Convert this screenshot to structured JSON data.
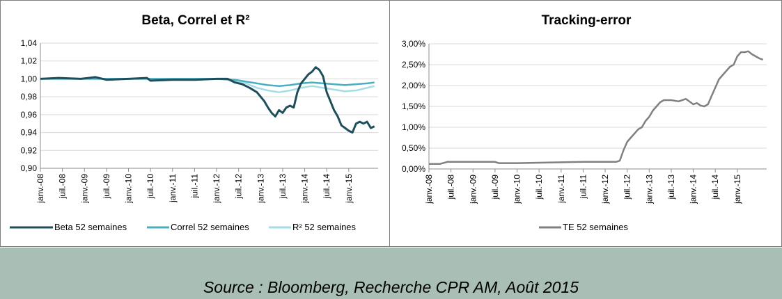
{
  "source": "Source : Bloomberg, Recherche CPR AM, Août 2015",
  "colors": {
    "beta": "#1f4e5b",
    "correl": "#4aaec2",
    "r2": "#a6dbe8",
    "te": "#808080",
    "axis": "#8c8c8c",
    "grid": "#d9d9d9"
  },
  "x_tick_labels": [
    "janv.-08",
    "juil.-08",
    "janv.-09",
    "juil.-09",
    "janv.-10",
    "juil.-10",
    "janv.-11",
    "juil.-11",
    "janv.-12",
    "juil.-12",
    "janv.-13",
    "juil.-13",
    "janv.-14",
    "juil.-14",
    "janv.-15"
  ],
  "chart_data": [
    {
      "type": "line",
      "title": "Beta, Correl et R²",
      "x_ticks": [
        "janv.-08",
        "juil.-08",
        "janv.-09",
        "juil.-09",
        "janv.-10",
        "juil.-10",
        "janv.-11",
        "juil.-11",
        "janv.-12",
        "juil.-12",
        "janv.-13",
        "juil.-13",
        "janv.-14",
        "juil.-14",
        "janv.-15"
      ],
      "y_tick_labels": [
        "0,90",
        "0,92",
        "0,94",
        "0,96",
        "0,98",
        "1,00",
        "1,02",
        "1,04"
      ],
      "ylim": [
        0.9,
        1.04
      ],
      "grid": "horizontal",
      "legend_position": "bottom",
      "series": [
        {
          "name": "Beta 52 semaines",
          "color": "#1f4e5b",
          "points": [
            [
              "2008-01",
              1.0
            ],
            [
              "2008-06",
              1.001
            ],
            [
              "2008-12",
              1.0
            ],
            [
              "2009-04",
              1.002
            ],
            [
              "2009-07",
              0.999
            ],
            [
              "2010-01",
              1.0
            ],
            [
              "2010-06",
              1.001
            ],
            [
              "2010-07",
              0.998
            ],
            [
              "2011-01",
              0.999
            ],
            [
              "2011-07",
              0.999
            ],
            [
              "2012-01",
              1.0
            ],
            [
              "2012-04",
              1.0
            ],
            [
              "2012-06",
              0.996
            ],
            [
              "2012-08",
              0.994
            ],
            [
              "2012-10",
              0.99
            ],
            [
              "2012-12",
              0.985
            ],
            [
              "2013-02",
              0.975
            ],
            [
              "2013-03",
              0.968
            ],
            [
              "2013-04",
              0.962
            ],
            [
              "2013-05",
              0.958
            ],
            [
              "2013-06",
              0.965
            ],
            [
              "2013-07",
              0.962
            ],
            [
              "2013-08",
              0.968
            ],
            [
              "2013-09",
              0.97
            ],
            [
              "2013-10",
              0.968
            ],
            [
              "2013-11",
              0.985
            ],
            [
              "2013-12",
              0.995
            ],
            [
              "2014-01",
              1.0
            ],
            [
              "2014-02",
              1.005
            ],
            [
              "2014-03",
              1.008
            ],
            [
              "2014-04",
              1.013
            ],
            [
              "2014-05",
              1.01
            ],
            [
              "2014-06",
              1.003
            ],
            [
              "2014-07",
              0.985
            ],
            [
              "2014-08",
              0.975
            ],
            [
              "2014-09",
              0.965
            ],
            [
              "2014-10",
              0.958
            ],
            [
              "2014-11",
              0.948
            ],
            [
              "2014-12",
              0.945
            ],
            [
              "2015-01",
              0.942
            ],
            [
              "2015-02",
              0.94
            ],
            [
              "2015-03",
              0.95
            ],
            [
              "2015-04",
              0.952
            ],
            [
              "2015-05",
              0.95
            ],
            [
              "2015-06",
              0.952
            ],
            [
              "2015-07",
              0.945
            ],
            [
              "2015-08",
              0.947
            ]
          ]
        },
        {
          "name": "Correl 52 semaines",
          "color": "#4aaec2",
          "points": [
            [
              "2008-01",
              1.0
            ],
            [
              "2009-01",
              1.0
            ],
            [
              "2010-01",
              1.0
            ],
            [
              "2011-01",
              1.0
            ],
            [
              "2012-01",
              1.0
            ],
            [
              "2012-06",
              0.999
            ],
            [
              "2012-09",
              0.997
            ],
            [
              "2012-12",
              0.995
            ],
            [
              "2013-03",
              0.993
            ],
            [
              "2013-06",
              0.992
            ],
            [
              "2013-09",
              0.993
            ],
            [
              "2013-12",
              0.995
            ],
            [
              "2014-03",
              0.996
            ],
            [
              "2014-06",
              0.995
            ],
            [
              "2014-09",
              0.994
            ],
            [
              "2014-12",
              0.993
            ],
            [
              "2015-03",
              0.994
            ],
            [
              "2015-06",
              0.995
            ],
            [
              "2015-08",
              0.996
            ]
          ]
        },
        {
          "name": "R² 52 semaines",
          "color": "#a6dbe8",
          "points": [
            [
              "2008-01",
              1.0
            ],
            [
              "2009-01",
              1.0
            ],
            [
              "2010-01",
              1.0
            ],
            [
              "2011-01",
              1.0
            ],
            [
              "2012-01",
              1.0
            ],
            [
              "2012-06",
              0.998
            ],
            [
              "2012-09",
              0.995
            ],
            [
              "2012-12",
              0.99
            ],
            [
              "2013-03",
              0.987
            ],
            [
              "2013-06",
              0.985
            ],
            [
              "2013-09",
              0.987
            ],
            [
              "2013-12",
              0.99
            ],
            [
              "2014-03",
              0.992
            ],
            [
              "2014-06",
              0.99
            ],
            [
              "2014-09",
              0.988
            ],
            [
              "2014-12",
              0.986
            ],
            [
              "2015-03",
              0.987
            ],
            [
              "2015-06",
              0.99
            ],
            [
              "2015-08",
              0.992
            ]
          ]
        }
      ]
    },
    {
      "type": "line",
      "title": "Tracking-error",
      "x_ticks": [
        "janv.-08",
        "juil.-08",
        "janv.-09",
        "juil.-09",
        "janv.-10",
        "juil.-10",
        "janv.-11",
        "juil.-11",
        "janv.-12",
        "juil.-12",
        "janv.-13",
        "juil.-13",
        "janv.-14",
        "juil.-14",
        "janv.-15"
      ],
      "y_tick_labels": [
        "0,00%",
        "0,50%",
        "1,00%",
        "1,50%",
        "2,00%",
        "2,50%",
        "3,00%"
      ],
      "ylim": [
        0.0,
        3.0
      ],
      "grid": "horizontal",
      "legend_position": "bottom",
      "series": [
        {
          "name": "TE 52 semaines",
          "color": "#808080",
          "points": [
            [
              "2008-01",
              0.12
            ],
            [
              "2008-04",
              0.12
            ],
            [
              "2008-06",
              0.17
            ],
            [
              "2009-01",
              0.17
            ],
            [
              "2009-07",
              0.17
            ],
            [
              "2009-08",
              0.14
            ],
            [
              "2010-01",
              0.14
            ],
            [
              "2010-07",
              0.15
            ],
            [
              "2011-01",
              0.16
            ],
            [
              "2011-07",
              0.17
            ],
            [
              "2012-01",
              0.17
            ],
            [
              "2012-04",
              0.17
            ],
            [
              "2012-05",
              0.2
            ],
            [
              "2012-06",
              0.45
            ],
            [
              "2012-07",
              0.65
            ],
            [
              "2012-08",
              0.75
            ],
            [
              "2012-09",
              0.85
            ],
            [
              "2012-10",
              0.95
            ],
            [
              "2012-11",
              1.0
            ],
            [
              "2012-12",
              1.15
            ],
            [
              "2013-01",
              1.25
            ],
            [
              "2013-02",
              1.4
            ],
            [
              "2013-03",
              1.5
            ],
            [
              "2013-04",
              1.6
            ],
            [
              "2013-05",
              1.65
            ],
            [
              "2013-07",
              1.65
            ],
            [
              "2013-09",
              1.62
            ],
            [
              "2013-11",
              1.68
            ],
            [
              "2014-01",
              1.55
            ],
            [
              "2014-02",
              1.58
            ],
            [
              "2014-03",
              1.52
            ],
            [
              "2014-04",
              1.5
            ],
            [
              "2014-05",
              1.55
            ],
            [
              "2014-06",
              1.75
            ],
            [
              "2014-07",
              1.95
            ],
            [
              "2014-08",
              2.15
            ],
            [
              "2014-09",
              2.25
            ],
            [
              "2014-10",
              2.35
            ],
            [
              "2014-11",
              2.45
            ],
            [
              "2014-12",
              2.5
            ],
            [
              "2015-01",
              2.7
            ],
            [
              "2015-02",
              2.8
            ],
            [
              "2015-03",
              2.8
            ],
            [
              "2015-04",
              2.82
            ],
            [
              "2015-05",
              2.75
            ],
            [
              "2015-06",
              2.7
            ],
            [
              "2015-07",
              2.65
            ],
            [
              "2015-08",
              2.62
            ]
          ]
        }
      ]
    }
  ]
}
